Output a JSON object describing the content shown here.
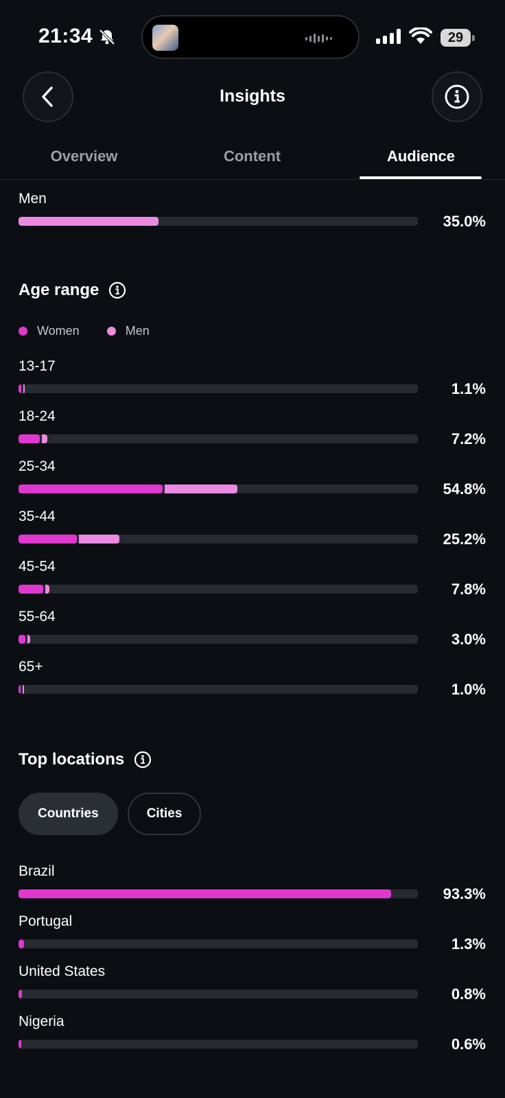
{
  "status_bar": {
    "time": "21:34",
    "battery": "29"
  },
  "header": {
    "title": "Insights"
  },
  "tabs": [
    {
      "label": "Overview",
      "active": false
    },
    {
      "label": "Content",
      "active": false
    },
    {
      "label": "Audience",
      "active": true
    }
  ],
  "gender": {
    "men": {
      "label": "Men",
      "percent": "35.0%",
      "value": 35.0
    }
  },
  "age_range": {
    "title": "Age range",
    "legend": {
      "women": "Women",
      "men": "Men"
    },
    "colors": {
      "women": "#e037cf",
      "men": "#eb8ae0"
    },
    "rows": [
      {
        "label": "13-17",
        "percent": "1.1%",
        "total": 1.1
      },
      {
        "label": "18-24",
        "percent": "7.2%",
        "total": 7.2
      },
      {
        "label": "25-34",
        "percent": "54.8%",
        "total": 54.8
      },
      {
        "label": "35-44",
        "percent": "25.2%",
        "total": 25.2
      },
      {
        "label": "45-54",
        "percent": "7.8%",
        "total": 7.8
      },
      {
        "label": "55-64",
        "percent": "3.0%",
        "total": 3.0
      },
      {
        "label": "65+",
        "percent": "1.0%",
        "total": 1.0
      }
    ]
  },
  "top_locations": {
    "title": "Top locations",
    "chips": [
      {
        "label": "Countries",
        "selected": true
      },
      {
        "label": "Cities",
        "selected": false
      }
    ],
    "rows": [
      {
        "label": "Brazil",
        "percent": "93.3%",
        "value": 93.3
      },
      {
        "label": "Portugal",
        "percent": "1.3%",
        "value": 1.3
      },
      {
        "label": "United States",
        "percent": "0.8%",
        "value": 0.8
      },
      {
        "label": "Nigeria",
        "percent": "0.6%",
        "value": 0.6
      }
    ]
  }
}
